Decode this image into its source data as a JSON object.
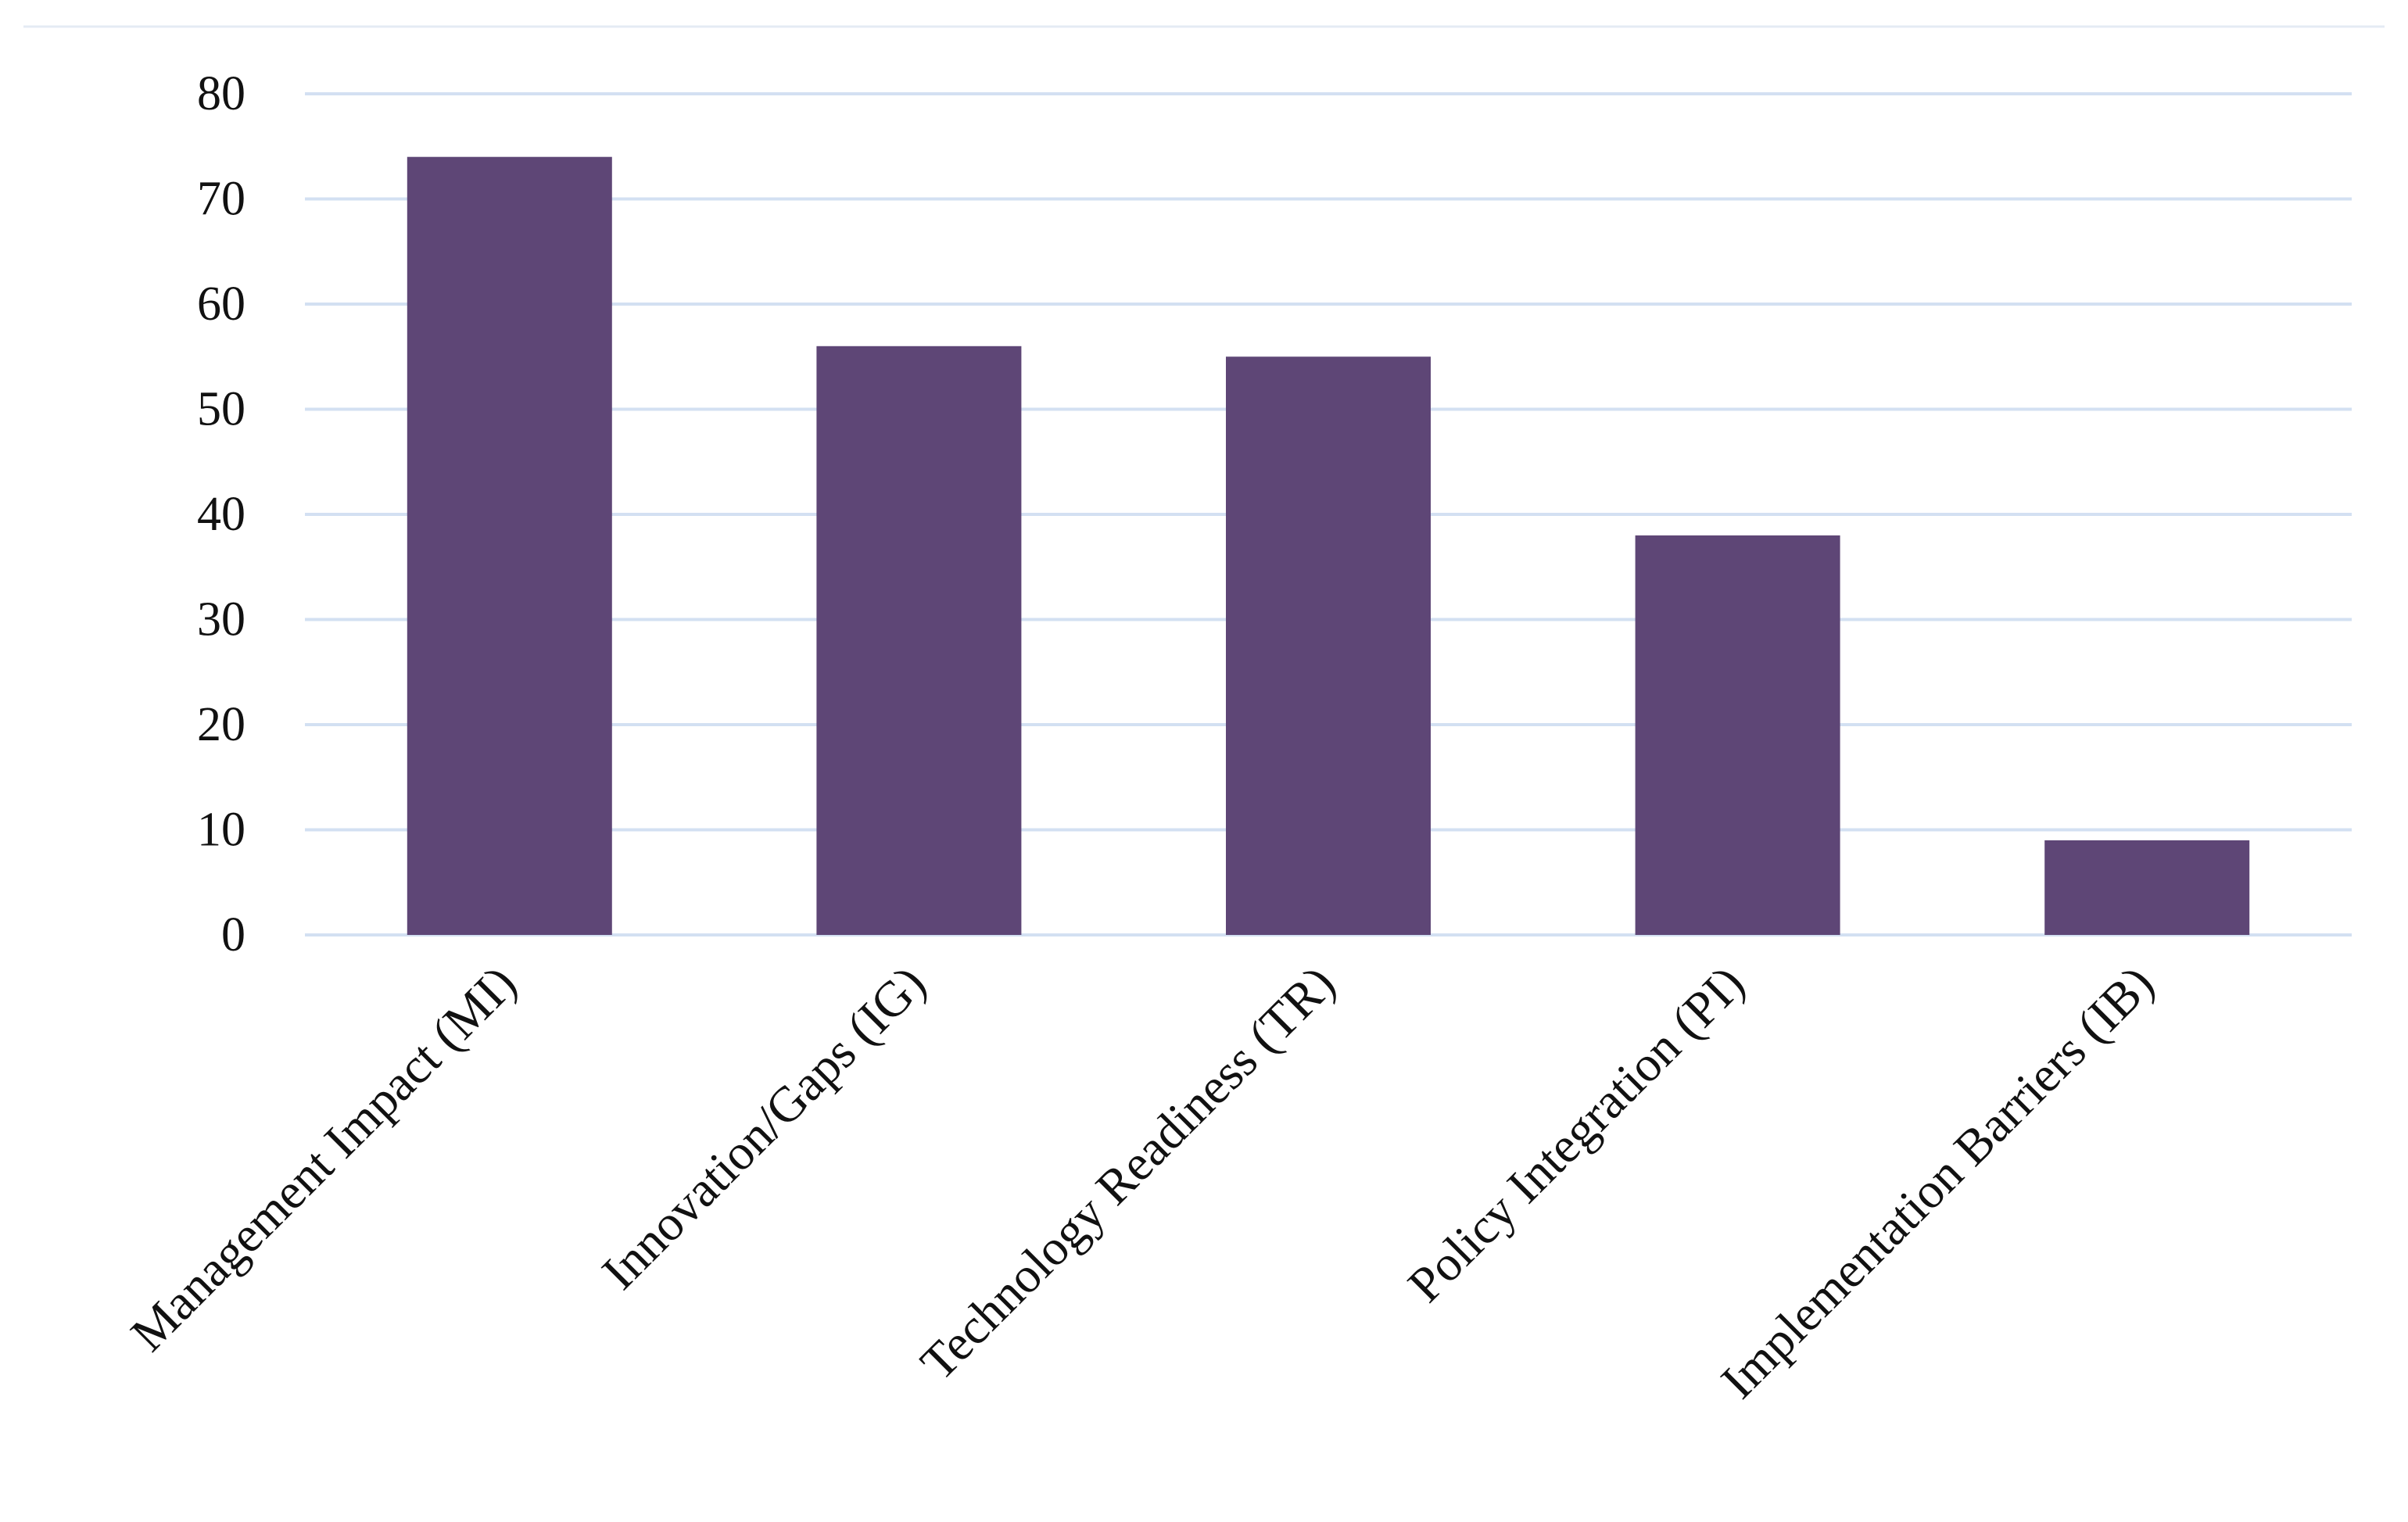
{
  "chart_data": {
    "type": "bar",
    "categories": [
      "Management Impact (MI)",
      "Innovation/Gaps (IG)",
      "Technology Readiness (TR)",
      "Policy Integration (PI)",
      "Implementation Barriers (IB)"
    ],
    "values": [
      74,
      56,
      55,
      38,
      9
    ],
    "ylim": [
      0,
      80
    ],
    "yticks": [
      0,
      10,
      20,
      30,
      40,
      50,
      60,
      70,
      80
    ],
    "grid": true,
    "title": "",
    "xlabel": "",
    "ylabel": "",
    "colors": {
      "bar": "#5e4676",
      "gridline": "#d3e0f2"
    }
  }
}
